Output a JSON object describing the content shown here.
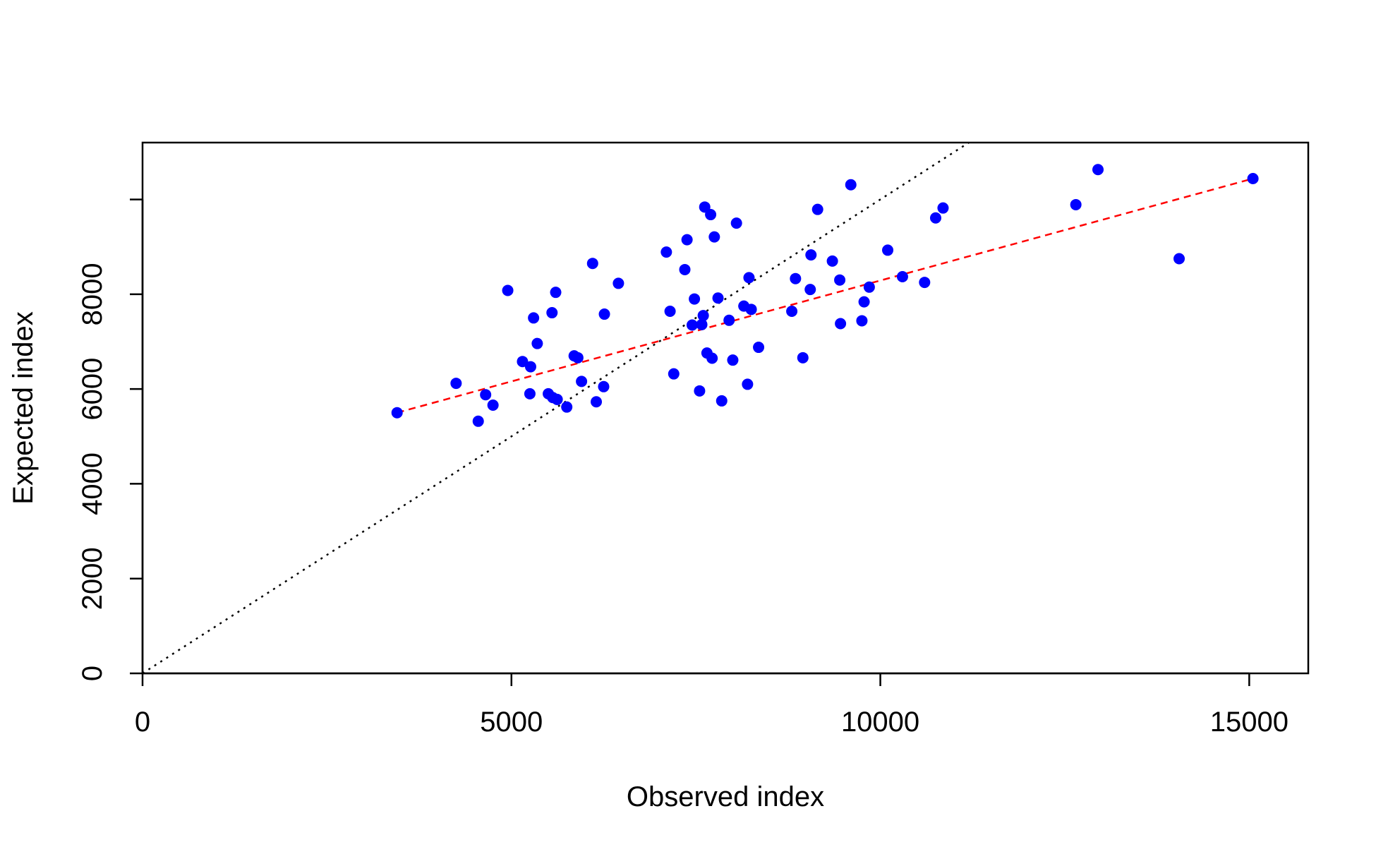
{
  "chart_data": {
    "type": "scatter",
    "title": "",
    "xlabel": "Observed index",
    "ylabel": "Expected index",
    "xlim": [
      0,
      15800
    ],
    "ylim": [
      0,
      11200
    ],
    "x_ticks": [
      0,
      5000,
      10000,
      15000
    ],
    "x_tick_labels": [
      "0",
      "5000",
      "10000",
      "15000"
    ],
    "y_ticks": [
      0,
      2000,
      4000,
      6000,
      8000
    ],
    "y_tick_labels": [
      "0",
      "2000",
      "4000",
      "6000",
      "8000"
    ],
    "y_tick_positions_extra": [
      10000
    ],
    "grid": false,
    "legend": "none",
    "colors": {
      "points": "#0000FF",
      "fit_line": "#FF0000",
      "identity_line": "#000000"
    },
    "points": {
      "x": [
        3450,
        4250,
        4550,
        4650,
        4750,
        4950,
        5150,
        5250,
        5260,
        5300,
        5350,
        5500,
        5550,
        5560,
        5600,
        5620,
        5750,
        5850,
        5900,
        5950,
        6100,
        6150,
        6250,
        6260,
        6450,
        7100,
        7150,
        7200,
        7350,
        7380,
        7450,
        7480,
        7550,
        7580,
        7600,
        7620,
        7650,
        7700,
        7720,
        7750,
        7800,
        7850,
        7950,
        8000,
        8050,
        8150,
        8200,
        8220,
        8250,
        8350,
        8800,
        8850,
        8950,
        9050,
        9060,
        9150,
        9350,
        9450,
        9460,
        9600,
        9750,
        9780,
        9850,
        10100,
        10300,
        10600,
        10750,
        10850,
        12650,
        12950,
        14050,
        15050
      ],
      "y": [
        5500,
        6120,
        5320,
        5880,
        5660,
        8080,
        6580,
        5900,
        6470,
        7500,
        6960,
        5900,
        7610,
        5820,
        8040,
        5780,
        5620,
        6700,
        6660,
        6160,
        8650,
        5730,
        6050,
        7580,
        8230,
        8890,
        7640,
        6320,
        8520,
        9150,
        7350,
        7900,
        5960,
        7360,
        7550,
        9840,
        6760,
        9680,
        6650,
        9210,
        7920,
        5750,
        7450,
        6610,
        9500,
        7750,
        6100,
        8350,
        7680,
        6880,
        7640,
        8330,
        6660,
        8100,
        8830,
        9790,
        8700,
        8300,
        7380,
        10310,
        7440,
        7840,
        8150,
        8930,
        8370,
        8250,
        9610,
        9820,
        9890,
        10630,
        8750,
        10440
      ]
    },
    "fit_line": {
      "style": "dashed",
      "x": [
        3450,
        15050
      ],
      "y": [
        5500,
        10440
      ]
    },
    "identity_line": {
      "style": "dotted",
      "slope": 1,
      "intercept": 0
    }
  }
}
